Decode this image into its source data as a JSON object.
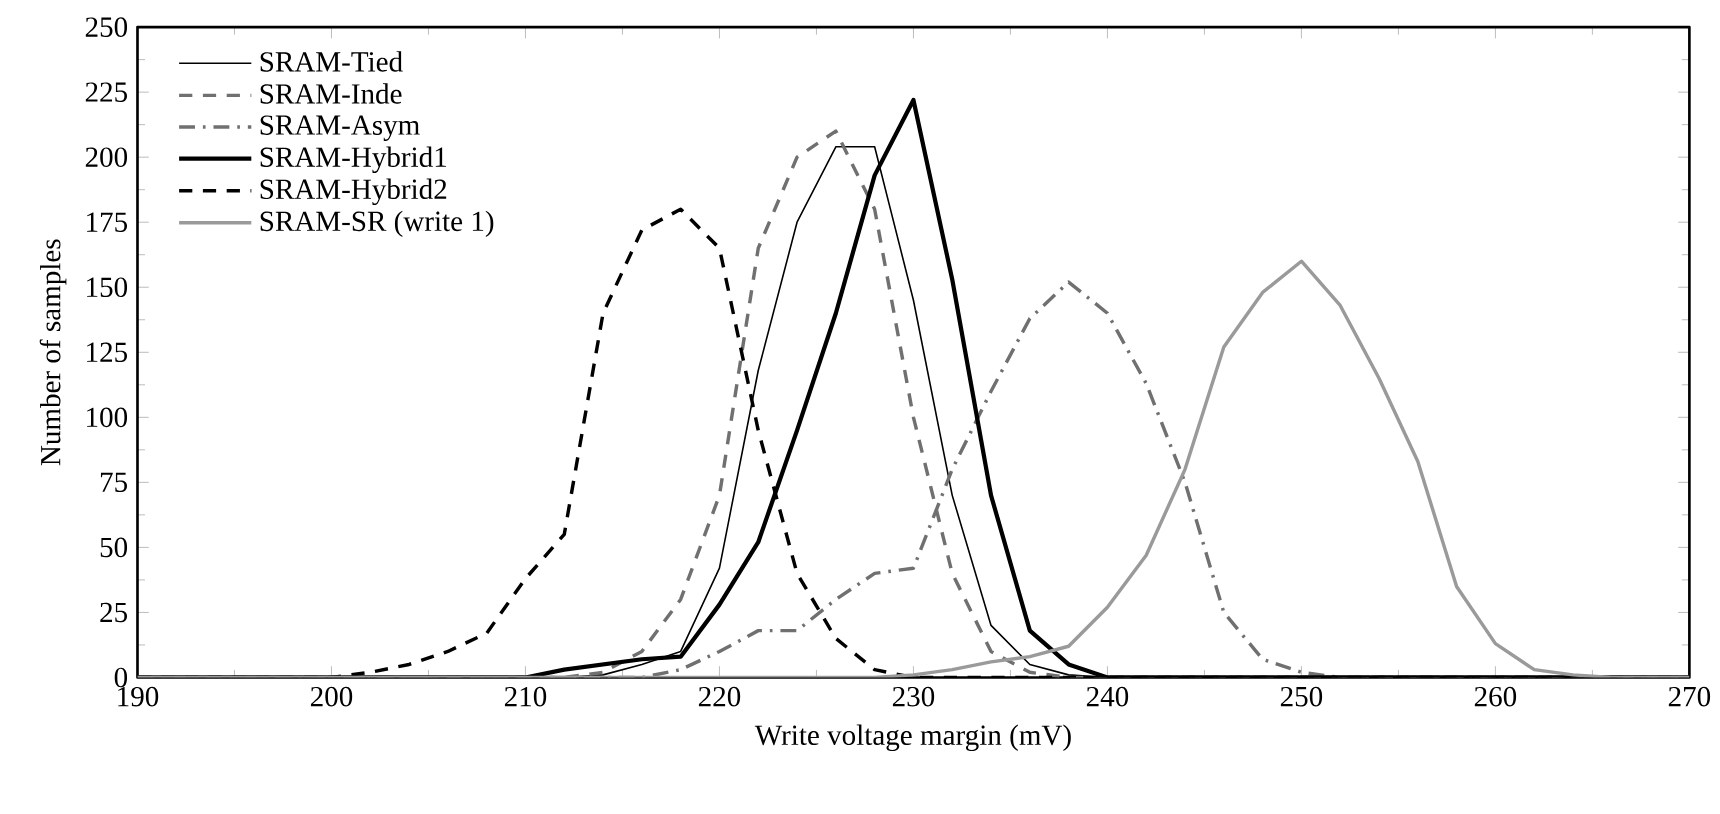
{
  "chart_data": {
    "type": "line",
    "xlabel": "Write voltage margin (mV)",
    "ylabel": "Number of samples",
    "x": [
      190,
      192,
      194,
      196,
      198,
      200,
      202,
      204,
      206,
      208,
      210,
      212,
      214,
      216,
      218,
      220,
      222,
      224,
      226,
      228,
      230,
      232,
      234,
      236,
      238,
      240,
      242,
      244,
      246,
      248,
      250,
      252,
      254,
      256,
      258,
      260,
      262,
      264,
      266,
      268,
      270
    ],
    "series": [
      {
        "name": "SRAM-Tied",
        "color": "#000000",
        "line_style": "solid",
        "values": [
          0,
          0,
          0,
          0,
          0,
          0,
          0,
          0,
          0,
          0,
          0,
          0,
          1,
          5,
          10,
          42,
          118,
          175,
          204,
          204,
          145,
          70,
          20,
          5,
          1,
          0,
          0,
          0,
          0,
          0,
          0,
          0,
          0,
          0,
          0,
          0,
          0,
          0,
          0,
          0,
          0
        ]
      },
      {
        "name": "SRAM-Inde",
        "color": "#707070",
        "line_style": "dashed",
        "values": [
          0,
          0,
          0,
          0,
          0,
          0,
          0,
          0,
          0,
          0,
          0,
          0,
          2,
          10,
          30,
          70,
          165,
          200,
          210,
          180,
          100,
          40,
          10,
          2,
          0,
          0,
          0,
          0,
          0,
          0,
          0,
          0,
          0,
          0,
          0,
          0,
          0,
          0,
          0,
          0,
          0
        ]
      },
      {
        "name": "SRAM-Asym",
        "color": "#707070",
        "line_style": "dashdot",
        "values": [
          0,
          0,
          0,
          0,
          0,
          0,
          0,
          0,
          0,
          0,
          0,
          0,
          0,
          0,
          3,
          10,
          18,
          18,
          30,
          40,
          42,
          80,
          110,
          138,
          152,
          140,
          113,
          75,
          25,
          7,
          2,
          0,
          0,
          0,
          0,
          0,
          0,
          0,
          0,
          0,
          0
        ]
      },
      {
        "name": "SRAM-Hybrid1",
        "color": "#000000",
        "line_style": "solid",
        "values": [
          0,
          0,
          0,
          0,
          0,
          0,
          0,
          0,
          0,
          0,
          0,
          3,
          5,
          7,
          8,
          28,
          52,
          95,
          140,
          193,
          222,
          153,
          70,
          18,
          5,
          0,
          0,
          0,
          0,
          0,
          0,
          0,
          0,
          0,
          0,
          0,
          0,
          0,
          0,
          0,
          0
        ]
      },
      {
        "name": "SRAM-Hybrid2",
        "color": "#000000",
        "line_style": "dashed",
        "values": [
          0,
          0,
          0,
          0,
          0,
          0,
          2,
          5,
          10,
          17,
          38,
          55,
          140,
          172,
          180,
          165,
          95,
          40,
          15,
          3,
          0,
          0,
          0,
          0,
          0,
          0,
          0,
          0,
          0,
          0,
          0,
          0,
          0,
          0,
          0,
          0,
          0,
          0,
          0,
          0,
          0
        ]
      },
      {
        "name": "SRAM-SR (write 1)",
        "color": "#9a9a9a",
        "line_style": "solid",
        "values": [
          0,
          0,
          0,
          0,
          0,
          0,
          0,
          0,
          0,
          0,
          0,
          0,
          0,
          0,
          0,
          0,
          0,
          0,
          0,
          0,
          1,
          3,
          6,
          8,
          12,
          27,
          47,
          80,
          127,
          148,
          160,
          143,
          115,
          83,
          35,
          13,
          3,
          1,
          0,
          0,
          0
        ]
      }
    ],
    "xlim": [
      190,
      270
    ],
    "ylim": [
      0,
      250
    ],
    "xticks": [
      190,
      200,
      210,
      220,
      230,
      240,
      250,
      260,
      270
    ],
    "yticks": [
      0,
      25,
      50,
      75,
      100,
      125,
      150,
      175,
      200,
      225,
      250
    ],
    "grid": false,
    "legend": "top left",
    "marker": "none"
  }
}
